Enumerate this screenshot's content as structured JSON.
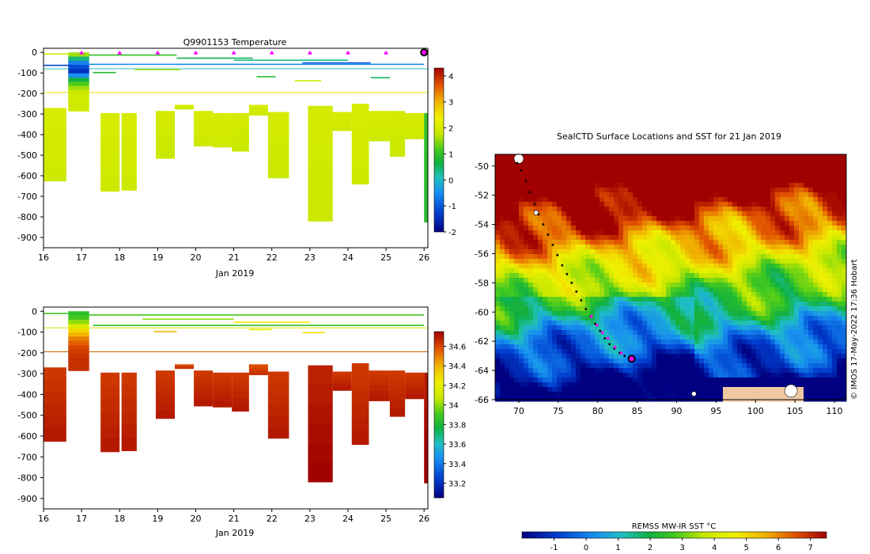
{
  "chart_data": [
    {
      "type": "heatmap",
      "title": "Q9901153  Temperature",
      "xlabel": "Jan 2019",
      "ylabel": "",
      "x_ticks": [
        "16",
        "17",
        "18",
        "19",
        "20",
        "21",
        "22",
        "23",
        "24",
        "25",
        "26"
      ],
      "y_ticks": [
        "0",
        "-100",
        "-200",
        "-300",
        "-400",
        "-500",
        "-600",
        "-700",
        "-800",
        "-900"
      ],
      "xlim": [
        16,
        26.1
      ],
      "ylim": [
        -950,
        20
      ],
      "colorbar": {
        "min": -2,
        "max": 4.3,
        "ticks": [
          "4",
          "3",
          "2",
          "1",
          "0",
          "-1",
          "-2"
        ]
      },
      "surface_markers": [
        17,
        18,
        19,
        20,
        21,
        22,
        23,
        24,
        25
      ],
      "reference_lines": [
        {
          "depth": -80,
          "color": "#20c0c0"
        },
        {
          "depth": -195,
          "color": "#e0e000"
        }
      ],
      "profiles": [
        {
          "x0": 16.0,
          "x1": 16.6,
          "top": -270,
          "bottom": -625,
          "value": 1.9
        },
        {
          "x0": 16.65,
          "x1": 17.2,
          "top": 0,
          "bottom": -285,
          "value": 1.6,
          "surface": true
        },
        {
          "x0": 17.5,
          "x1": 18.0,
          "top": -295,
          "bottom": -675,
          "value": 1.9
        },
        {
          "x0": 18.05,
          "x1": 18.45,
          "top": -295,
          "bottom": -670,
          "value": 1.9
        },
        {
          "x0": 18.95,
          "x1": 19.45,
          "top": -285,
          "bottom": -515,
          "value": 1.85
        },
        {
          "x0": 19.45,
          "x1": 19.95,
          "top": -255,
          "bottom": -275,
          "value": 1.9
        },
        {
          "x0": 19.95,
          "x1": 20.45,
          "top": -285,
          "bottom": -455,
          "value": 1.9
        },
        {
          "x0": 20.45,
          "x1": 20.95,
          "top": -295,
          "bottom": -460,
          "value": 1.9
        },
        {
          "x0": 20.95,
          "x1": 21.4,
          "top": -295,
          "bottom": -480,
          "value": 1.85
        },
        {
          "x0": 21.4,
          "x1": 21.9,
          "top": -255,
          "bottom": -305,
          "value": 1.9
        },
        {
          "x0": 21.9,
          "x1": 22.45,
          "top": -290,
          "bottom": -610,
          "value": 1.85
        },
        {
          "x0": 22.95,
          "x1": 23.6,
          "top": -260,
          "bottom": -820,
          "value": 1.85
        },
        {
          "x0": 23.6,
          "x1": 24.1,
          "top": -290,
          "bottom": -380,
          "value": 1.9
        },
        {
          "x0": 24.1,
          "x1": 24.55,
          "top": -250,
          "bottom": -640,
          "value": 1.9
        },
        {
          "x0": 24.55,
          "x1": 25.1,
          "top": -285,
          "bottom": -430,
          "value": 1.9
        },
        {
          "x0": 25.1,
          "x1": 25.5,
          "top": -285,
          "bottom": -505,
          "value": 1.85
        },
        {
          "x0": 25.5,
          "x1": 26.0,
          "top": -295,
          "bottom": -420,
          "value": 1.9
        },
        {
          "x0": 26.0,
          "x1": 26.1,
          "top": -295,
          "bottom": -825,
          "value": 0.9
        }
      ],
      "surface_lines": [
        {
          "x0": 16.0,
          "x1": 16.65,
          "depth": -5,
          "value": 2.0
        },
        {
          "x0": 17.2,
          "x1": 19.5,
          "depth": -10,
          "value": 1.0
        },
        {
          "x0": 19.5,
          "x1": 21.5,
          "depth": -25,
          "value": 0.6
        },
        {
          "x0": 21.0,
          "x1": 24.0,
          "depth": -35,
          "value": 0.3
        },
        {
          "x0": 17.2,
          "x1": 26.0,
          "depth": -55,
          "value": -0.5
        },
        {
          "x0": 22.8,
          "x1": 24.6,
          "depth": -48,
          "value": -1.0
        },
        {
          "x0": 16.0,
          "x1": 16.8,
          "depth": -60,
          "value": -1.2
        },
        {
          "x0": 18.4,
          "x1": 19.6,
          "depth": -80,
          "value": 1.5
        },
        {
          "x0": 17.3,
          "x1": 17.9,
          "depth": -95,
          "value": 0.8
        },
        {
          "x0": 24.6,
          "x1": 25.1,
          "depth": -120,
          "value": 0.5
        },
        {
          "x0": 22.6,
          "x1": 23.3,
          "depth": -135,
          "value": 1.9
        },
        {
          "x0": 21.6,
          "x1": 22.1,
          "depth": -115,
          "value": 0.9
        }
      ]
    },
    {
      "type": "heatmap",
      "title": "",
      "xlabel": "Jan 2019",
      "x_ticks": [
        "16",
        "17",
        "18",
        "19",
        "20",
        "21",
        "22",
        "23",
        "24",
        "25",
        "26"
      ],
      "y_ticks": [
        "0",
        "-100",
        "-200",
        "-300",
        "-400",
        "-500",
        "-600",
        "-700",
        "-800",
        "-900"
      ],
      "xlim": [
        16,
        26.1
      ],
      "ylim": [
        -950,
        20
      ],
      "colorbar": {
        "min": 33.05,
        "max": 34.75,
        "ticks": [
          "34.6",
          "34.4",
          "34.2",
          "34",
          "33.8",
          "33.6",
          "33.4",
          "33.2"
        ]
      },
      "reference_lines": [
        {
          "depth": -80,
          "color": "#e0e000"
        },
        {
          "depth": -195,
          "color": "#c86400"
        }
      ],
      "profiles": [
        {
          "x0": 16.0,
          "x1": 16.6,
          "top": -270,
          "bottom": -625,
          "value": 34.65
        },
        {
          "x0": 16.65,
          "x1": 17.2,
          "top": 0,
          "bottom": -285,
          "value": 34.4,
          "surface": true
        },
        {
          "x0": 17.5,
          "x1": 18.0,
          "top": -295,
          "bottom": -675,
          "value": 34.65
        },
        {
          "x0": 18.05,
          "x1": 18.45,
          "top": -295,
          "bottom": -670,
          "value": 34.65
        },
        {
          "x0": 18.95,
          "x1": 19.45,
          "top": -285,
          "bottom": -515,
          "value": 34.65
        },
        {
          "x0": 19.45,
          "x1": 19.95,
          "top": -255,
          "bottom": -275,
          "value": 34.6
        },
        {
          "x0": 19.95,
          "x1": 20.45,
          "top": -285,
          "bottom": -455,
          "value": 34.65
        },
        {
          "x0": 20.45,
          "x1": 20.95,
          "top": -295,
          "bottom": -460,
          "value": 34.65
        },
        {
          "x0": 20.95,
          "x1": 21.4,
          "top": -295,
          "bottom": -480,
          "value": 34.65
        },
        {
          "x0": 21.4,
          "x1": 21.9,
          "top": -255,
          "bottom": -305,
          "value": 34.6
        },
        {
          "x0": 21.9,
          "x1": 22.45,
          "top": -290,
          "bottom": -610,
          "value": 34.65
        },
        {
          "x0": 22.95,
          "x1": 23.6,
          "top": -260,
          "bottom": -820,
          "value": 34.7
        },
        {
          "x0": 23.6,
          "x1": 24.1,
          "top": -290,
          "bottom": -380,
          "value": 34.65
        },
        {
          "x0": 24.1,
          "x1": 24.55,
          "top": -250,
          "bottom": -640,
          "value": 34.65
        },
        {
          "x0": 24.55,
          "x1": 25.1,
          "top": -285,
          "bottom": -430,
          "value": 34.65
        },
        {
          "x0": 25.1,
          "x1": 25.5,
          "top": -285,
          "bottom": -505,
          "value": 34.65
        },
        {
          "x0": 25.5,
          "x1": 26.0,
          "top": -295,
          "bottom": -420,
          "value": 34.65
        },
        {
          "x0": 26.0,
          "x1": 26.1,
          "top": -295,
          "bottom": -825,
          "value": 34.72
        }
      ],
      "surface_lines": [
        {
          "x0": 16.0,
          "x1": 16.65,
          "depth": -8,
          "value": 33.9
        },
        {
          "x0": 17.2,
          "x1": 26.0,
          "depth": -15,
          "value": 33.9
        },
        {
          "x0": 18.6,
          "x1": 21.0,
          "depth": -35,
          "value": 34.0
        },
        {
          "x0": 21.0,
          "x1": 23.0,
          "depth": -50,
          "value": 34.25
        },
        {
          "x0": 17.3,
          "x1": 26.0,
          "depth": -65,
          "value": 33.85
        },
        {
          "x0": 18.9,
          "x1": 19.5,
          "depth": -95,
          "value": 34.4
        },
        {
          "x0": 22.8,
          "x1": 23.4,
          "depth": -100,
          "value": 34.3
        },
        {
          "x0": 21.4,
          "x1": 22.0,
          "depth": -85,
          "value": 34.2
        }
      ]
    },
    {
      "type": "heatmap",
      "title": "SealCTD Surface Locations and SST for 21 Jan 2019",
      "xlabel": "",
      "x_ticks": [
        "70",
        "75",
        "80",
        "85",
        "90",
        "95",
        "100",
        "105",
        "110"
      ],
      "y_ticks": [
        "-50",
        "-52",
        "-54",
        "-56",
        "-58",
        "-60",
        "-62",
        "-64",
        "-66"
      ],
      "xlim": [
        67,
        111.5
      ],
      "ylim": [
        -66,
        -49.2
      ],
      "colorbar": {
        "label": "REMSS MW-IR SST °C",
        "min": -2,
        "max": 7.5,
        "ticks": [
          "-1",
          "0",
          "1",
          "2",
          "3",
          "4",
          "5",
          "6",
          "7"
        ]
      },
      "credit": "© IMOS 17-May-2022 17:36 Hobart",
      "track": [
        [
          69.8,
          -49.8
        ],
        [
          70.3,
          -50.3
        ],
        [
          70.9,
          -51.0
        ],
        [
          71.4,
          -51.8
        ],
        [
          72.0,
          -52.6
        ],
        [
          72.5,
          -53.3
        ],
        [
          73.1,
          -54.0
        ],
        [
          73.7,
          -54.7
        ],
        [
          74.3,
          -55.4
        ],
        [
          74.9,
          -56.1
        ],
        [
          75.5,
          -56.8
        ],
        [
          76.1,
          -57.4
        ],
        [
          76.7,
          -58.0
        ],
        [
          77.3,
          -58.6
        ],
        [
          77.9,
          -59.2
        ],
        [
          78.5,
          -59.8
        ],
        [
          79.1,
          -60.3
        ],
        [
          79.7,
          -60.8
        ],
        [
          80.3,
          -61.3
        ],
        [
          80.9,
          -61.8
        ],
        [
          81.5,
          -62.2
        ],
        [
          82.1,
          -62.5
        ],
        [
          82.8,
          -62.8
        ],
        [
          83.4,
          -63.0
        ]
      ],
      "track_current": [
        [
          79.2,
          -60.3
        ],
        [
          79.9,
          -60.9
        ],
        [
          80.6,
          -61.4
        ],
        [
          81.3,
          -61.8
        ],
        [
          82.2,
          -62.4
        ],
        [
          83.0,
          -62.8
        ]
      ],
      "last_position": [
        84.3,
        -63.2
      ]
    }
  ]
}
